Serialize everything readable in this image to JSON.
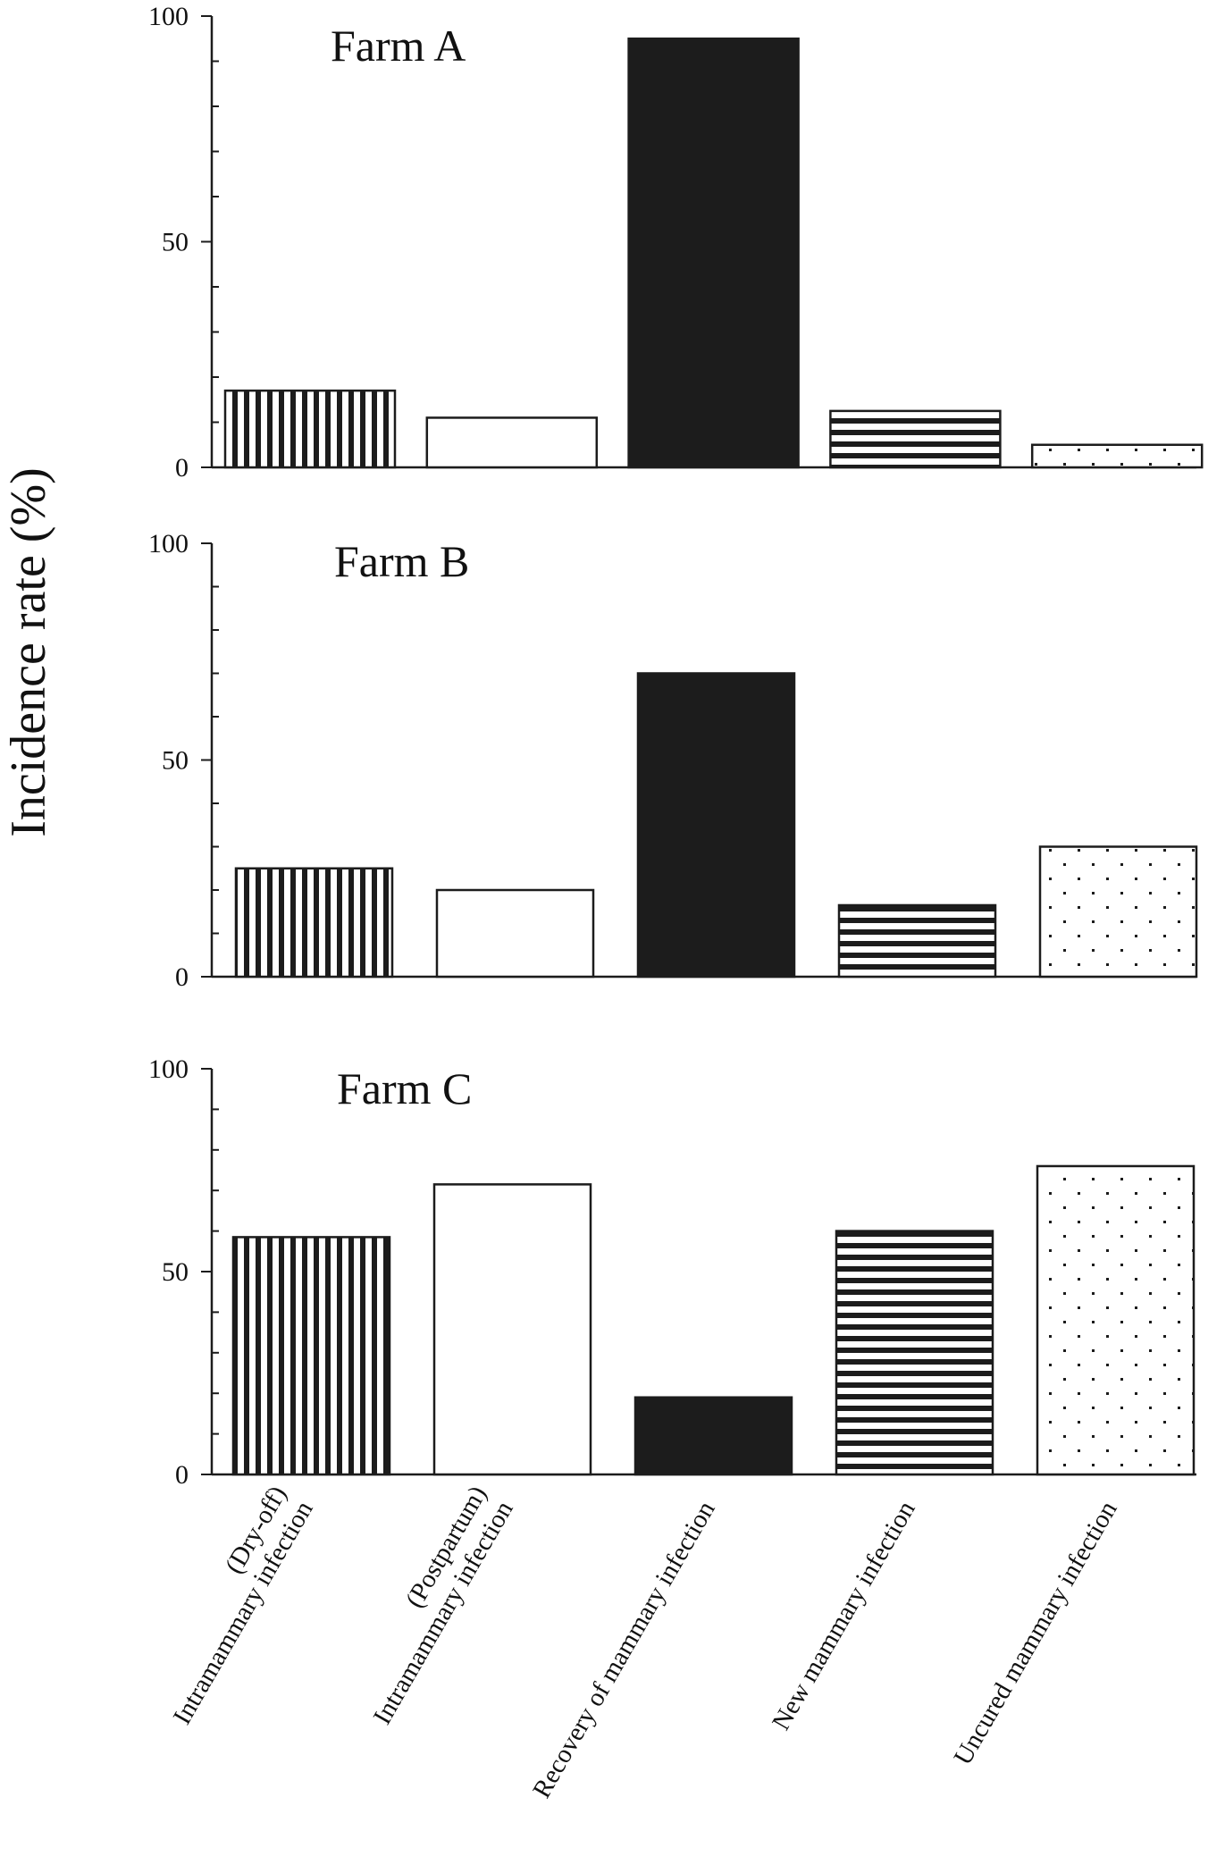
{
  "ylabel": "Incidence rate (%)",
  "categories": [
    [
      "(Dry-off)",
      "Intramammary infection"
    ],
    [
      "(Postpartum)",
      "Intramammary infection"
    ],
    [
      "Recovery of mammary infection"
    ],
    [
      "New mammary infection"
    ],
    [
      "Uncured mammary infection"
    ]
  ],
  "patterns": [
    "vertical-stripes",
    "open",
    "solid",
    "horizontal-stripes",
    "dots"
  ],
  "colors": {
    "ink": "#1c1c1c",
    "background": "#ffffff"
  },
  "chart_data": [
    {
      "type": "bar",
      "title": "Farm A",
      "categories": [
        "(Dry-off) Intramammary infection",
        "(Postpartum) Intramammary infection",
        "Recovery of mammary infection",
        "New mammary infection",
        "Uncured mammary infection"
      ],
      "values": [
        17,
        11,
        95,
        12.5,
        5
      ],
      "ylim": [
        0,
        100
      ],
      "yticks": [
        "0",
        "50",
        "100"
      ]
    },
    {
      "type": "bar",
      "title": "Farm B",
      "categories": [
        "(Dry-off) Intramammary infection",
        "(Postpartum) Intramammary infection",
        "Recovery of mammary infection",
        "New mammary infection",
        "Uncured mammary infection"
      ],
      "values": [
        25,
        20,
        70,
        16.5,
        30
      ],
      "ylim": [
        0,
        100
      ],
      "yticks": [
        "0",
        "50",
        "100"
      ]
    },
    {
      "type": "bar",
      "title": "Farm C",
      "categories": [
        "(Dry-off) Intramammary infection",
        "(Postpartum) Intramammary infection",
        "Recovery of mammary infection",
        "New mammary infection",
        "Uncured mammary infection"
      ],
      "values": [
        58.5,
        71.5,
        19,
        60,
        76
      ],
      "ylim": [
        0,
        100
      ],
      "yticks": [
        "0",
        "50",
        "100"
      ]
    }
  ]
}
